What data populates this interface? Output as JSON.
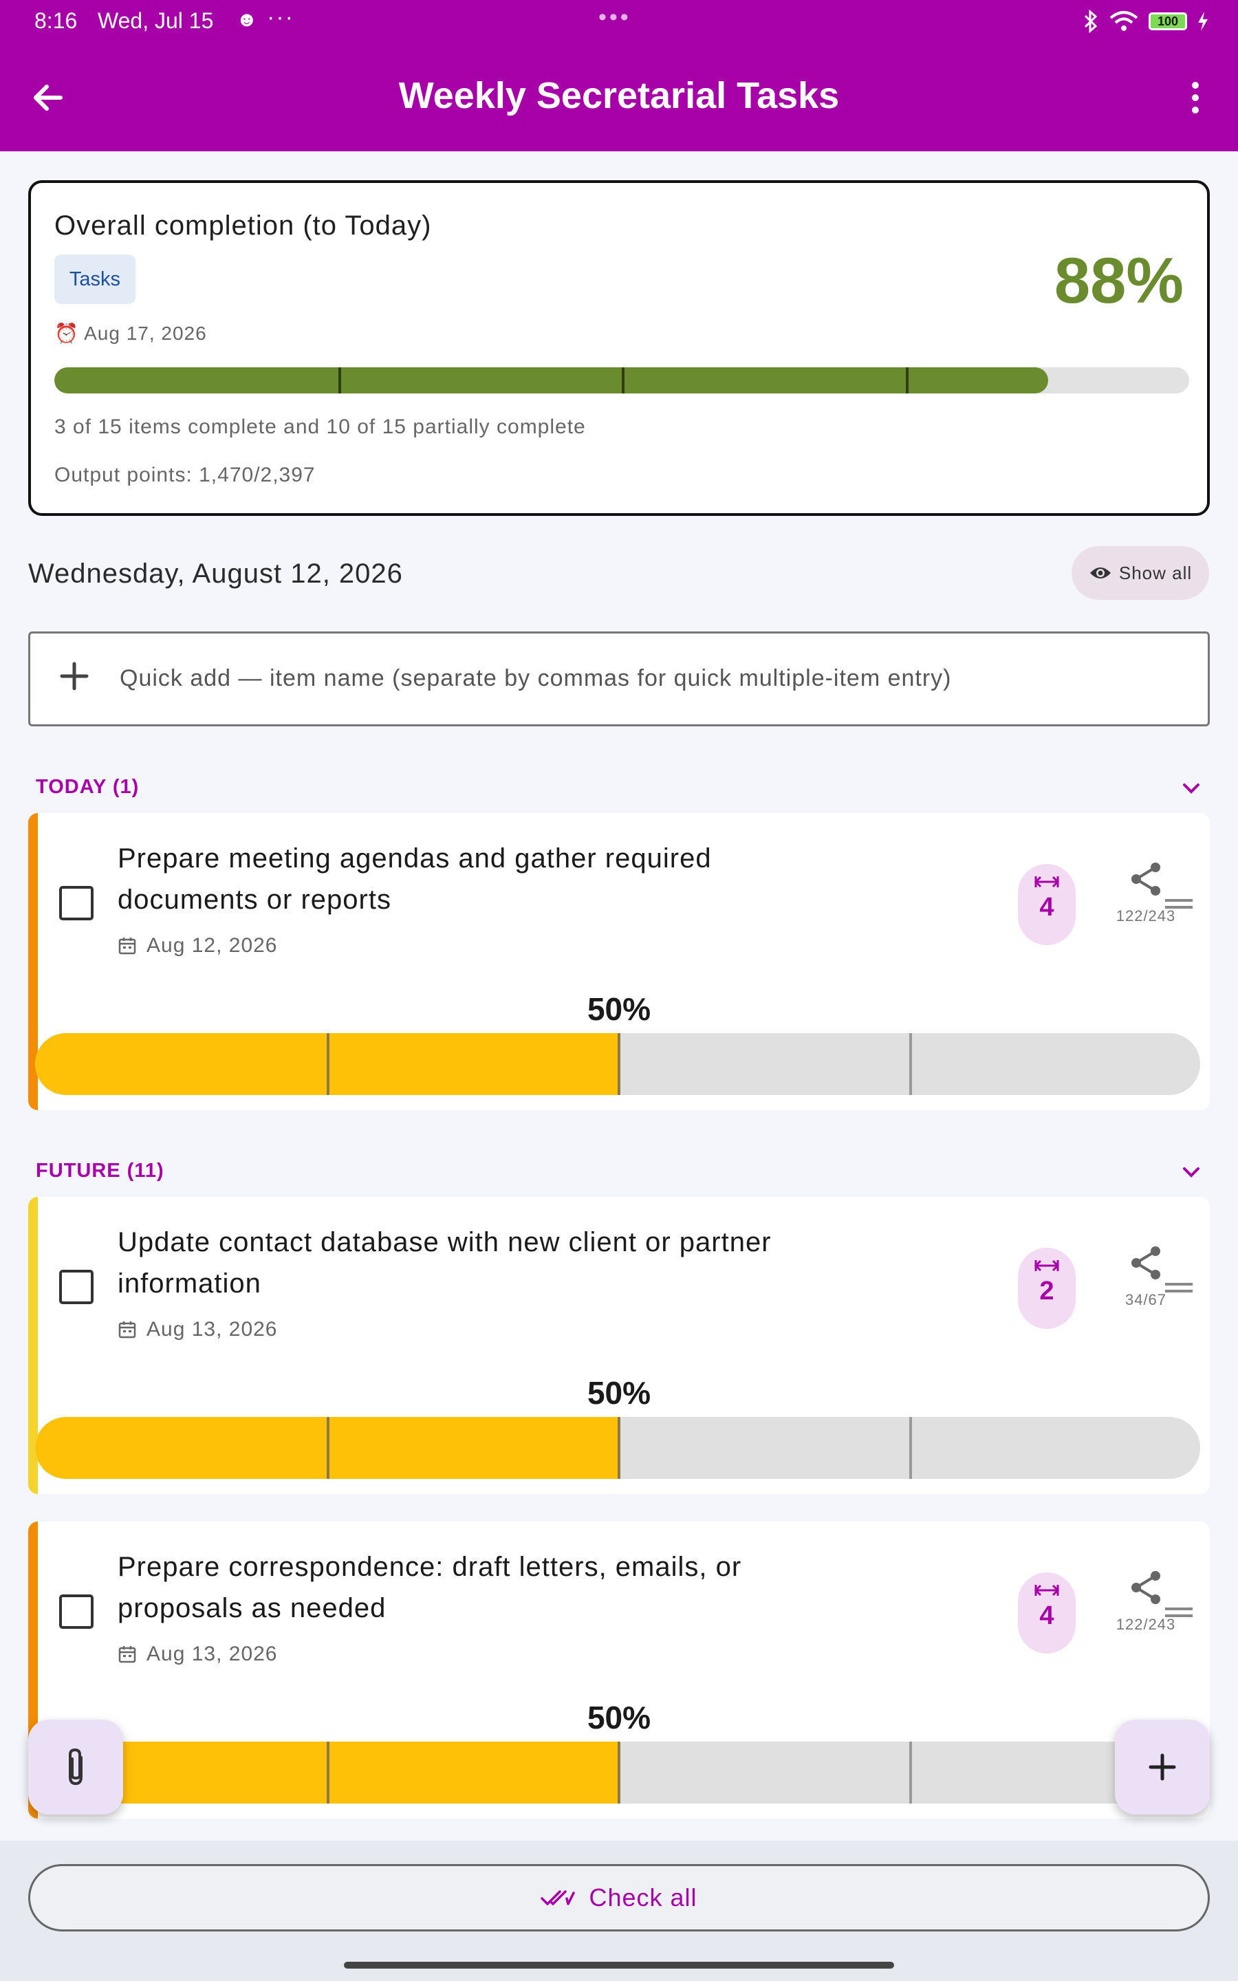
{
  "status_bar": {
    "time": "8:16",
    "date": "Wed, Jul 15",
    "battery": "100"
  },
  "app_bar": {
    "title": "Weekly Secretarial Tasks"
  },
  "overall": {
    "title": "Overall completion (to Today)",
    "chip": "Tasks",
    "percent_label": "88%",
    "progress": 0.876,
    "accent_color": "#6a8c2f",
    "date": "Aug 17, 2026",
    "items_summary": "3 of 15 items complete and 10 of 15 partially complete",
    "points_summary": "Output points: 1,470/2,397"
  },
  "day_heading": "Wednesday, August 12, 2026",
  "show_all_label": "Show all",
  "quick_add": {
    "placeholder": "Quick add — item name (separate by commas for quick multiple-item entry)"
  },
  "sections": {
    "today": "TODAY (1)",
    "future": "FUTURE (11)"
  },
  "tasks": [
    {
      "name": "Prepare meeting agendas and gather required documents or reports",
      "due": "Aug 12, 2026",
      "effort": "4",
      "points": "122/243",
      "percent_label": "50%",
      "progress": 0.5,
      "accent": "#f28c00"
    },
    {
      "name": "Update contact database with new client or partner information",
      "due": "Aug 13, 2026",
      "effort": "2",
      "points": "34/67",
      "percent_label": "50%",
      "progress": 0.5,
      "accent": "#f5d32a"
    },
    {
      "name": "Prepare correspondence: draft letters, emails, or proposals as needed",
      "due": "Aug 13, 2026",
      "effort": "4",
      "points": "122/243",
      "percent_label": "50%",
      "progress": 0.5,
      "accent": "#f28c00"
    }
  ],
  "check_all_label": "Check all",
  "colors": {
    "brand": "#a800a8",
    "progress_fill": "#ffc107",
    "overall_fill": "#6a8c2f"
  }
}
